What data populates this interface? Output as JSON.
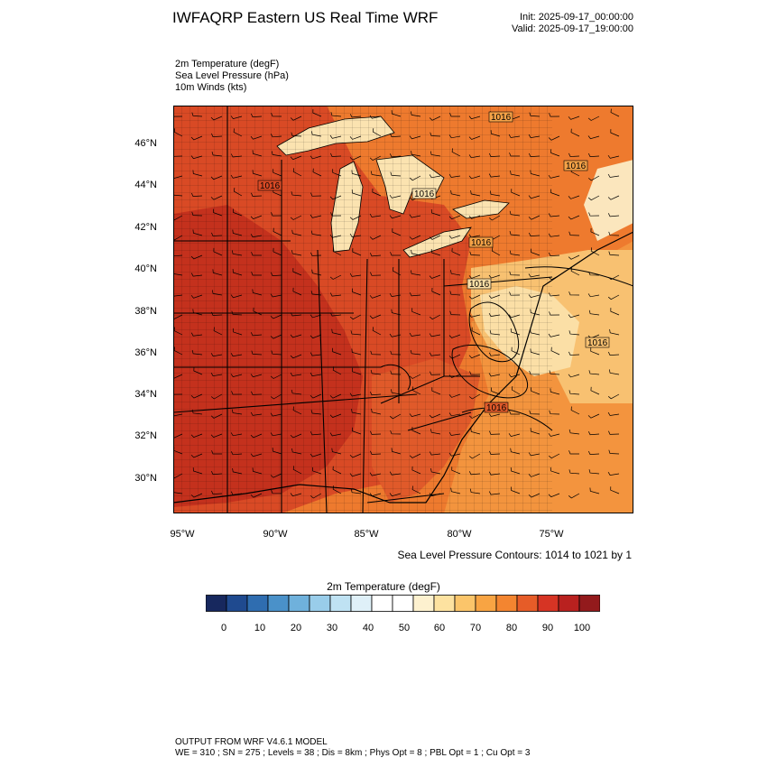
{
  "header": {
    "title": "IWFAQRP Eastern US Real Time WRF",
    "init": "Init: 2025-09-17_00:00:00",
    "valid": "Valid: 2025-09-17_19:00:00"
  },
  "fields": [
    "2m Temperature   (degF)",
    "Sea Level Pressure   (hPa)",
    "10m Winds   (kts)"
  ],
  "axes": {
    "lat_labels": [
      "46°N",
      "44°N",
      "42°N",
      "40°N",
      "38°N",
      "36°N",
      "34°N",
      "32°N",
      "30°N"
    ],
    "lon_labels": [
      "95°W",
      "90°W",
      "85°W",
      "80°W",
      "75°W"
    ]
  },
  "contour_labels": [
    "1016",
    "1016",
    "1016",
    "1016",
    "1016",
    "1016",
    "1016",
    "1016"
  ],
  "slp_note": "Sea Level Pressure Contours: 1014 to 1021 by 1",
  "colorbar": {
    "title": "2m Temperature  (degF)",
    "labels": [
      "0",
      "10",
      "20",
      "30",
      "40",
      "50",
      "60",
      "70",
      "80",
      "90",
      "100"
    ],
    "colors": [
      "#17285e",
      "#1f4a8f",
      "#2f6db0",
      "#4a91c9",
      "#6fb1dc",
      "#99cdea",
      "#bfe2f3",
      "#dff0f8",
      "#ffffff",
      "#ffffff",
      "#fdf1cf",
      "#fde2a0",
      "#fbc56a",
      "#f8a443",
      "#f38530",
      "#e65c28",
      "#d63424",
      "#b9211f",
      "#931a1c"
    ]
  },
  "map_colors": {
    "hot": "#c8371f",
    "warm": "#e0562a",
    "orange": "#f07b2e",
    "light_orange": "#f5a247",
    "pale": "#fbdda0",
    "lake": "#fbe5b3"
  },
  "footer": {
    "line1": "OUTPUT FROM WRF V4.6.1 MODEL",
    "line2": "WE = 310 ; SN = 275 ; Levels = 38 ; Dis = 8km ; Phys Opt = 8 ; PBL Opt = 1 ; Cu Opt = 3"
  }
}
